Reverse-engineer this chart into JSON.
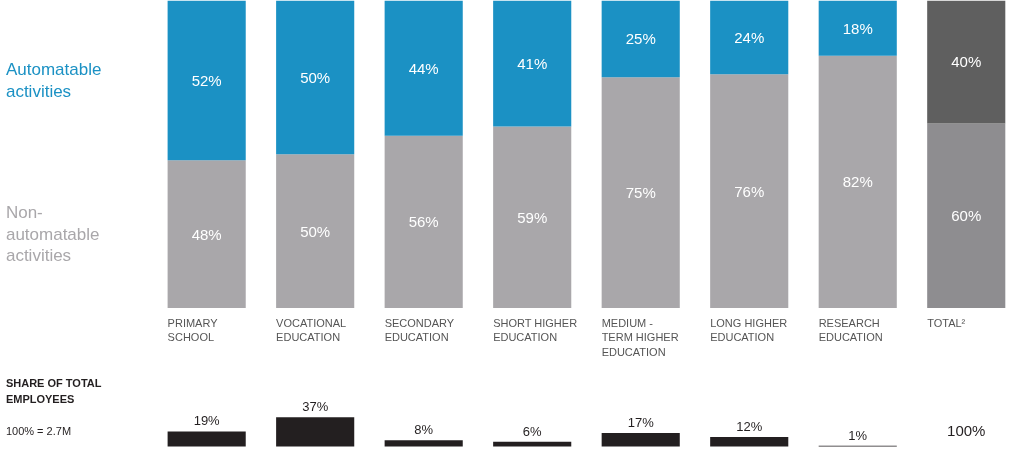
{
  "chart_data": [
    {
      "type": "bar",
      "stacked": true,
      "data_labels": true,
      "legend": "left",
      "categories": [
        "PRIMARY SCHOOL",
        "VOCATIONAL EDUCATION",
        "SECONDARY EDUCATION",
        "SHORT HIGHER EDUCATION",
        "MEDIUM - TERM HIGHER EDUCATION",
        "LONG HIGHER EDUCATION",
        "RESEARCH EDUCATION",
        "TOTAL²"
      ],
      "series": [
        {
          "name": "Non-automatable activities",
          "color": "#a9a7aa",
          "colors": [
            "#a9a7aa",
            "#a9a7aa",
            "#a9a7aa",
            "#a9a7aa",
            "#a9a7aa",
            "#a9a7aa",
            "#a9a7aa",
            "#8e8d90"
          ],
          "values": [
            48,
            50,
            56,
            59,
            75,
            76,
            82,
            60
          ],
          "value_labels": [
            "48%",
            "50%",
            "56%",
            "59%",
            "75%",
            "76%",
            "82%",
            "60%"
          ]
        },
        {
          "name": "Automatable activities",
          "color": "#1b91c4",
          "colors": [
            "#1b91c4",
            "#1b91c4",
            "#1b91c4",
            "#1b91c4",
            "#1b91c4",
            "#1b91c4",
            "#1b91c4",
            "#5f5f5f"
          ],
          "values": [
            52,
            50,
            44,
            41,
            25,
            24,
            18,
            40
          ],
          "value_labels": [
            "52%",
            "50%",
            "44%",
            "41%",
            "25%",
            "24%",
            "18%",
            "40%"
          ]
        }
      ]
    },
    {
      "type": "bar",
      "title": "SHARE OF TOTAL EMPLOYEES",
      "color": "#231f20",
      "categories": [
        null,
        null,
        null,
        null,
        null,
        null,
        null,
        null
      ],
      "values": [
        19,
        37,
        8,
        6,
        17,
        12,
        1,
        null
      ],
      "value_labels": [
        "19%",
        "37%",
        "8%",
        "6%",
        "17%",
        "12%",
        "1%",
        null
      ],
      "annotations": [
        "100%",
        "100% = 2.7M"
      ]
    }
  ]
}
